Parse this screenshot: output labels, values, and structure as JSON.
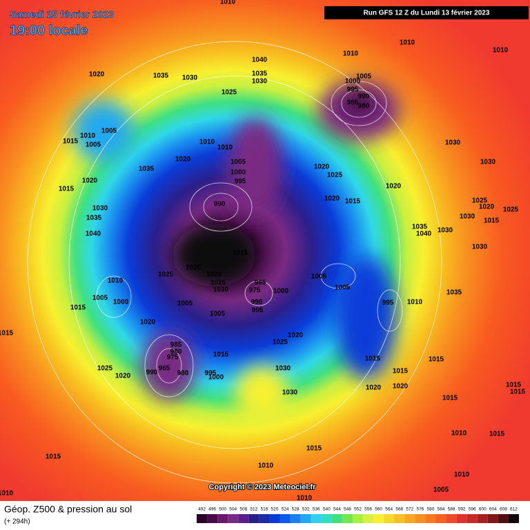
{
  "header": {
    "date": "Samedi 25 février 2023",
    "time": "19:00 locale",
    "run": "Run GFS 12 Z du Lundi 13 février 2023"
  },
  "copyright": "Copyright © 2023 Meteociel.fr",
  "footer": {
    "title": "Géop. Z500 & pression au sol",
    "lead": "(+ 294h)"
  },
  "scale": {
    "values": [
      492,
      496,
      500,
      504,
      508,
      512,
      516,
      520,
      524,
      528,
      532,
      536,
      540,
      544,
      548,
      552,
      556,
      560,
      564,
      568,
      572,
      576,
      580,
      584,
      588,
      592,
      596,
      600,
      604,
      608,
      612
    ],
    "colors": [
      "#2a002a",
      "#4a0a4a",
      "#6a186a",
      "#7a2a82",
      "#5a1f8a",
      "#2a1f8a",
      "#1a2aa8",
      "#0a3cd8",
      "#0a5af0",
      "#1a80f0",
      "#20a8f0",
      "#30d0f0",
      "#30e0c0",
      "#40e080",
      "#70e850",
      "#a8f040",
      "#d8f040",
      "#f8f030",
      "#f8d828",
      "#f8c020",
      "#f8a820",
      "#f89020",
      "#f87820",
      "#f86020",
      "#f04a28",
      "#e03030",
      "#c82828",
      "#a82020",
      "#801818",
      "#501010",
      "#100808"
    ]
  },
  "pressure_labels": [
    1010,
    1010,
    1010,
    1010,
    1020,
    1035,
    1030,
    1040,
    1035,
    1030,
    1025,
    1005,
    1000,
    995,
    990,
    985,
    980,
    1005,
    1015,
    1010,
    1005,
    1035,
    1020,
    1010,
    1010,
    1005,
    1000,
    995,
    1020,
    1025,
    1030,
    1030,
    990,
    1020,
    1015,
    1020,
    1025,
    1020,
    1025,
    1030,
    1015,
    1035,
    1040,
    1030,
    1030,
    1040,
    1035,
    1030,
    1020,
    1015,
    1015,
    1025,
    1025,
    1020,
    1025,
    1030,
    985,
    975,
    990,
    1000,
    995,
    1005,
    1005,
    1010,
    1005,
    1000,
    1015,
    1005,
    1005,
    995,
    1010,
    1035,
    1020,
    1020,
    1025,
    985,
    980,
    975,
    990,
    965,
    980,
    995,
    1000,
    1015,
    1015,
    1025,
    1020,
    1030,
    1015,
    1015,
    1020,
    1020,
    1015,
    1030,
    1015,
    1015,
    1015,
    1015,
    1010,
    1015,
    1015,
    1010,
    1010,
    1005,
    1010,
    1010
  ]
}
